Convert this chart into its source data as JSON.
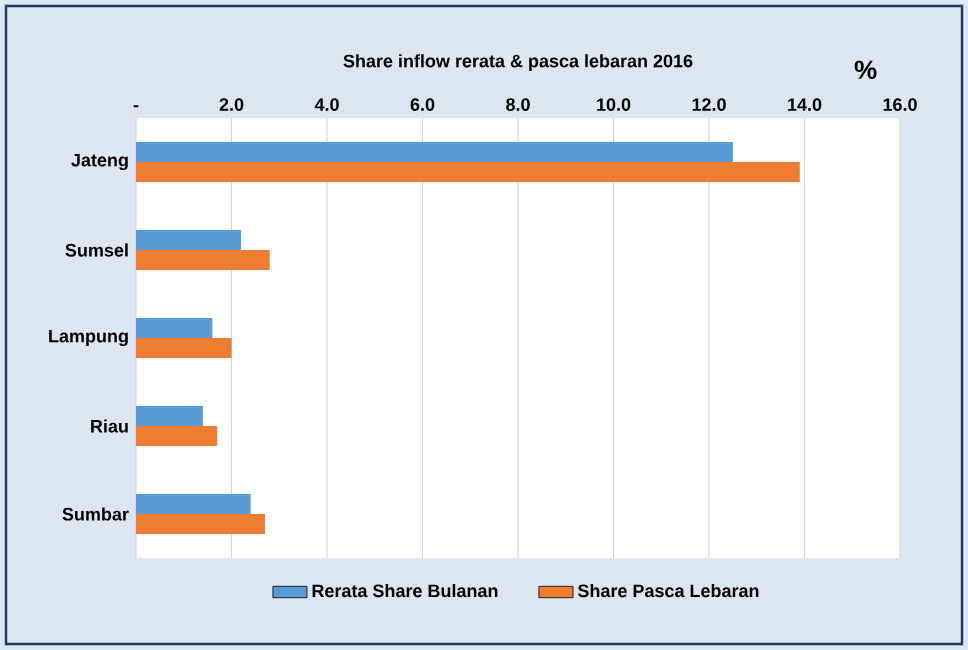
{
  "chart_data": {
    "type": "bar",
    "orientation": "horizontal",
    "title": "Share inflow rerata & pasca lebaran 2016",
    "xlabel": "%",
    "categories": [
      "Jateng",
      "Sumsel",
      "Lampung",
      "Riau",
      "Sumbar"
    ],
    "series": [
      {
        "name": "Rerata Share Bulanan",
        "color": "#5b9bd5",
        "values": [
          12.5,
          2.2,
          1.6,
          1.4,
          2.4
        ]
      },
      {
        "name": "Share Pasca Lebaran",
        "color": "#ed7d31",
        "values": [
          13.9,
          2.8,
          2.0,
          1.7,
          2.7
        ]
      }
    ],
    "xlim": [
      0,
      16
    ],
    "xticks": [
      {
        "value": 0,
        "label": "-"
      },
      {
        "value": 2,
        "label": "2.0"
      },
      {
        "value": 4,
        "label": "4.0"
      },
      {
        "value": 6,
        "label": "6.0"
      },
      {
        "value": 8,
        "label": "8.0"
      },
      {
        "value": 10,
        "label": "10.0"
      },
      {
        "value": 12,
        "label": "12.0"
      },
      {
        "value": 14,
        "label": "14.0"
      },
      {
        "value": 16,
        "label": "16.0"
      }
    ],
    "grid": "x",
    "legend": "bottom"
  }
}
